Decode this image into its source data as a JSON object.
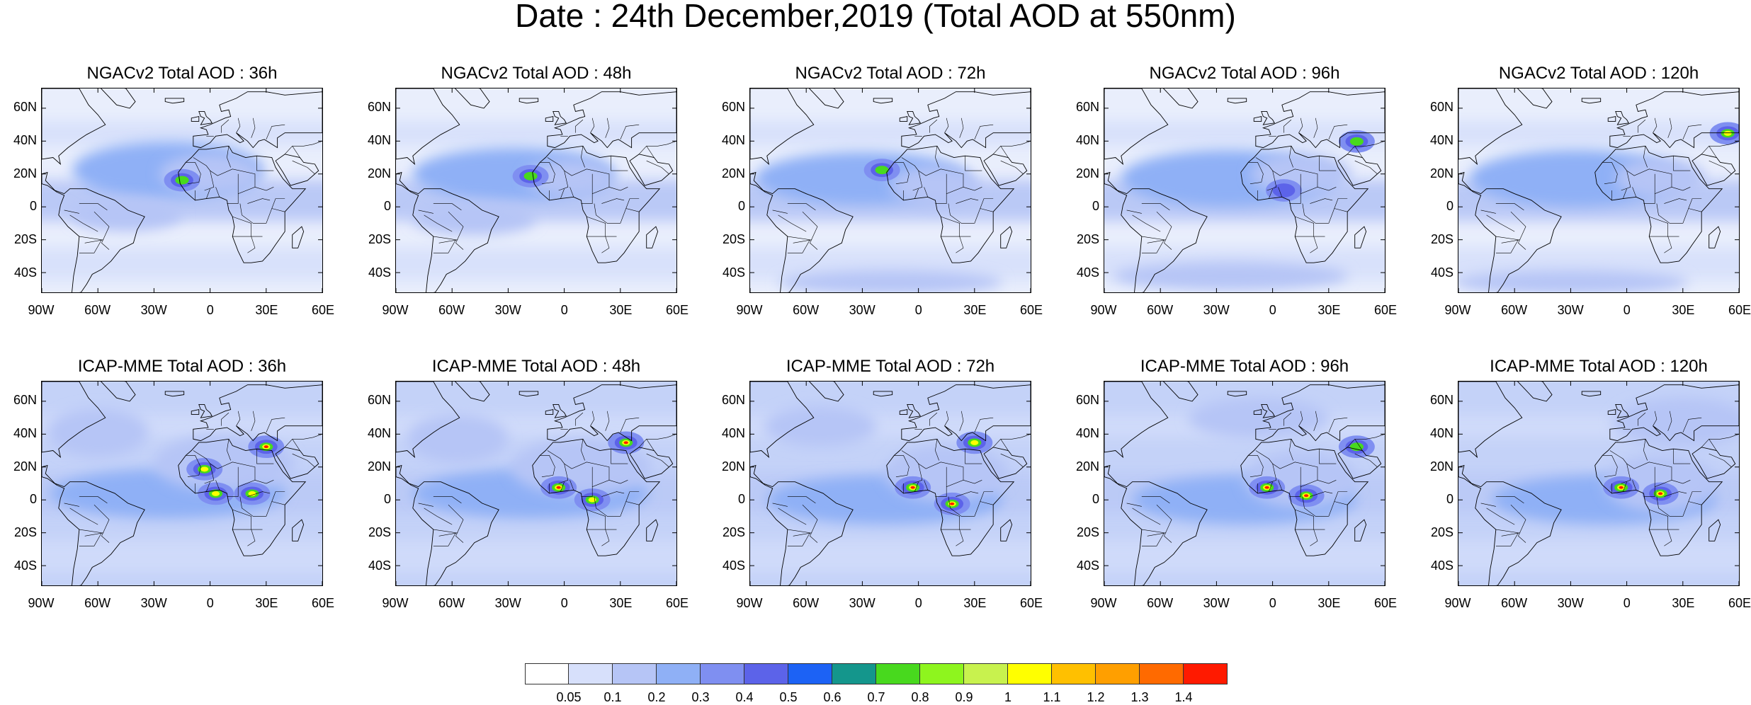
{
  "title": "Date : 24th December,2019 (Total AOD at 550nm)",
  "lat_labels": [
    "60N",
    "40N",
    "20N",
    "0",
    "20S",
    "40S"
  ],
  "lon_labels": [
    "90W",
    "60W",
    "30W",
    "0",
    "30E",
    "60E"
  ],
  "rows": [
    {
      "model": "NGACv2",
      "panels": [
        {
          "title": "NGACv2 Total AOD : 36h",
          "plumes": [
            [
              0.45,
              0.4,
              0.34,
              0.14,
              0.45
            ],
            [
              0.6,
              0.42,
              0.18,
              0.1,
              0.35
            ],
            [
              0.3,
              0.62,
              0.2,
              0.08,
              0.25
            ]
          ],
          "hotspots": [
            [
              0.5,
              0.45,
              0.5
            ]
          ]
        },
        {
          "title": "NGACv2 Total AOD : 48h",
          "plumes": [
            [
              0.42,
              0.42,
              0.36,
              0.13,
              0.45
            ],
            [
              0.62,
              0.44,
              0.16,
              0.09,
              0.35
            ],
            [
              0.28,
              0.64,
              0.22,
              0.08,
              0.25
            ]
          ],
          "hotspots": [
            [
              0.48,
              0.43,
              0.5
            ]
          ]
        },
        {
          "title": "NGACv2 Total AOD : 72h",
          "plumes": [
            [
              0.4,
              0.44,
              0.38,
              0.13,
              0.45
            ],
            [
              0.66,
              0.48,
              0.16,
              0.1,
              0.35
            ],
            [
              0.5,
              0.95,
              0.4,
              0.06,
              0.3
            ]
          ],
          "hotspots": [
            [
              0.47,
              0.4,
              0.6
            ]
          ]
        },
        {
          "title": "NGACv2 Total AOD : 96h",
          "plumes": [
            [
              0.44,
              0.44,
              0.38,
              0.14,
              0.45
            ],
            [
              0.7,
              0.42,
              0.18,
              0.1,
              0.35
            ],
            [
              0.45,
              0.92,
              0.42,
              0.07,
              0.35
            ]
          ],
          "hotspots": [
            [
              0.9,
              0.26,
              0.6
            ],
            [
              0.64,
              0.5,
              0.4
            ]
          ]
        },
        {
          "title": "NGACv2 Total AOD : 120h",
          "plumes": [
            [
              0.42,
              0.44,
              0.38,
              0.14,
              0.45
            ],
            [
              0.72,
              0.44,
              0.16,
              0.1,
              0.35
            ],
            [
              0.4,
              0.95,
              0.42,
              0.06,
              0.35
            ]
          ],
          "hotspots": [
            [
              0.96,
              0.22,
              0.7
            ]
          ]
        }
      ]
    },
    {
      "model": "ICAP-MME",
      "panels": [
        {
          "title": "ICAP-MME Total AOD : 36h",
          "plumes": [
            [
              0.45,
              0.55,
              0.42,
              0.12,
              0.45
            ],
            [
              0.65,
              0.4,
              0.25,
              0.14,
              0.4
            ],
            [
              0.2,
              0.25,
              0.18,
              0.12,
              0.25
            ]
          ],
          "hotspots": [
            [
              0.58,
              0.43,
              0.8
            ],
            [
              0.8,
              0.32,
              0.9
            ],
            [
              0.62,
              0.55,
              0.8
            ],
            [
              0.75,
              0.55,
              0.7
            ]
          ]
        },
        {
          "title": "ICAP-MME Total AOD : 48h",
          "plumes": [
            [
              0.48,
              0.55,
              0.42,
              0.12,
              0.45
            ],
            [
              0.66,
              0.42,
              0.25,
              0.14,
              0.4
            ],
            [
              0.22,
              0.28,
              0.18,
              0.12,
              0.25
            ]
          ],
          "hotspots": [
            [
              0.58,
              0.52,
              0.9
            ],
            [
              0.82,
              0.3,
              0.9
            ],
            [
              0.7,
              0.58,
              0.8
            ]
          ]
        },
        {
          "title": "ICAP-MME Total AOD : 72h",
          "plumes": [
            [
              0.48,
              0.58,
              0.42,
              0.12,
              0.45
            ],
            [
              0.7,
              0.45,
              0.22,
              0.14,
              0.4
            ],
            [
              0.25,
              0.22,
              0.2,
              0.1,
              0.25
            ]
          ],
          "hotspots": [
            [
              0.58,
              0.52,
              1.0
            ],
            [
              0.72,
              0.6,
              0.9
            ],
            [
              0.8,
              0.3,
              0.8
            ]
          ]
        },
        {
          "title": "ICAP-MME Total AOD : 96h",
          "plumes": [
            [
              0.5,
              0.58,
              0.4,
              0.12,
              0.45
            ],
            [
              0.7,
              0.48,
              0.2,
              0.14,
              0.4
            ],
            [
              0.55,
              0.18,
              0.25,
              0.1,
              0.25
            ]
          ],
          "hotspots": [
            [
              0.58,
              0.52,
              1.0
            ],
            [
              0.72,
              0.56,
              0.9
            ],
            [
              0.9,
              0.32,
              0.6
            ]
          ]
        },
        {
          "title": "ICAP-MME Total AOD : 120h",
          "plumes": [
            [
              0.52,
              0.58,
              0.4,
              0.12,
              0.45
            ],
            [
              0.72,
              0.5,
              0.2,
              0.14,
              0.4
            ],
            [
              0.8,
              0.2,
              0.25,
              0.12,
              0.25
            ]
          ],
          "hotspots": [
            [
              0.58,
              0.52,
              1.0
            ],
            [
              0.72,
              0.55,
              0.9
            ]
          ]
        }
      ]
    }
  ],
  "colorbar": {
    "colors": [
      "#ffffff",
      "#d7e0fb",
      "#b6c5f6",
      "#8fb0f6",
      "#7f8ff1",
      "#5c63e9",
      "#1c62f5",
      "#14968c",
      "#48d91e",
      "#8ef51e",
      "#c8f24e",
      "#ffff00",
      "#ffc000",
      "#ff9f00",
      "#ff6a00",
      "#ff1a00"
    ],
    "labels": [
      "0.05",
      "0.1",
      "0.2",
      "0.3",
      "0.4",
      "0.5",
      "0.6",
      "0.7",
      "0.8",
      "0.9",
      "1",
      "1.1",
      "1.2",
      "1.3",
      "1.4"
    ]
  }
}
